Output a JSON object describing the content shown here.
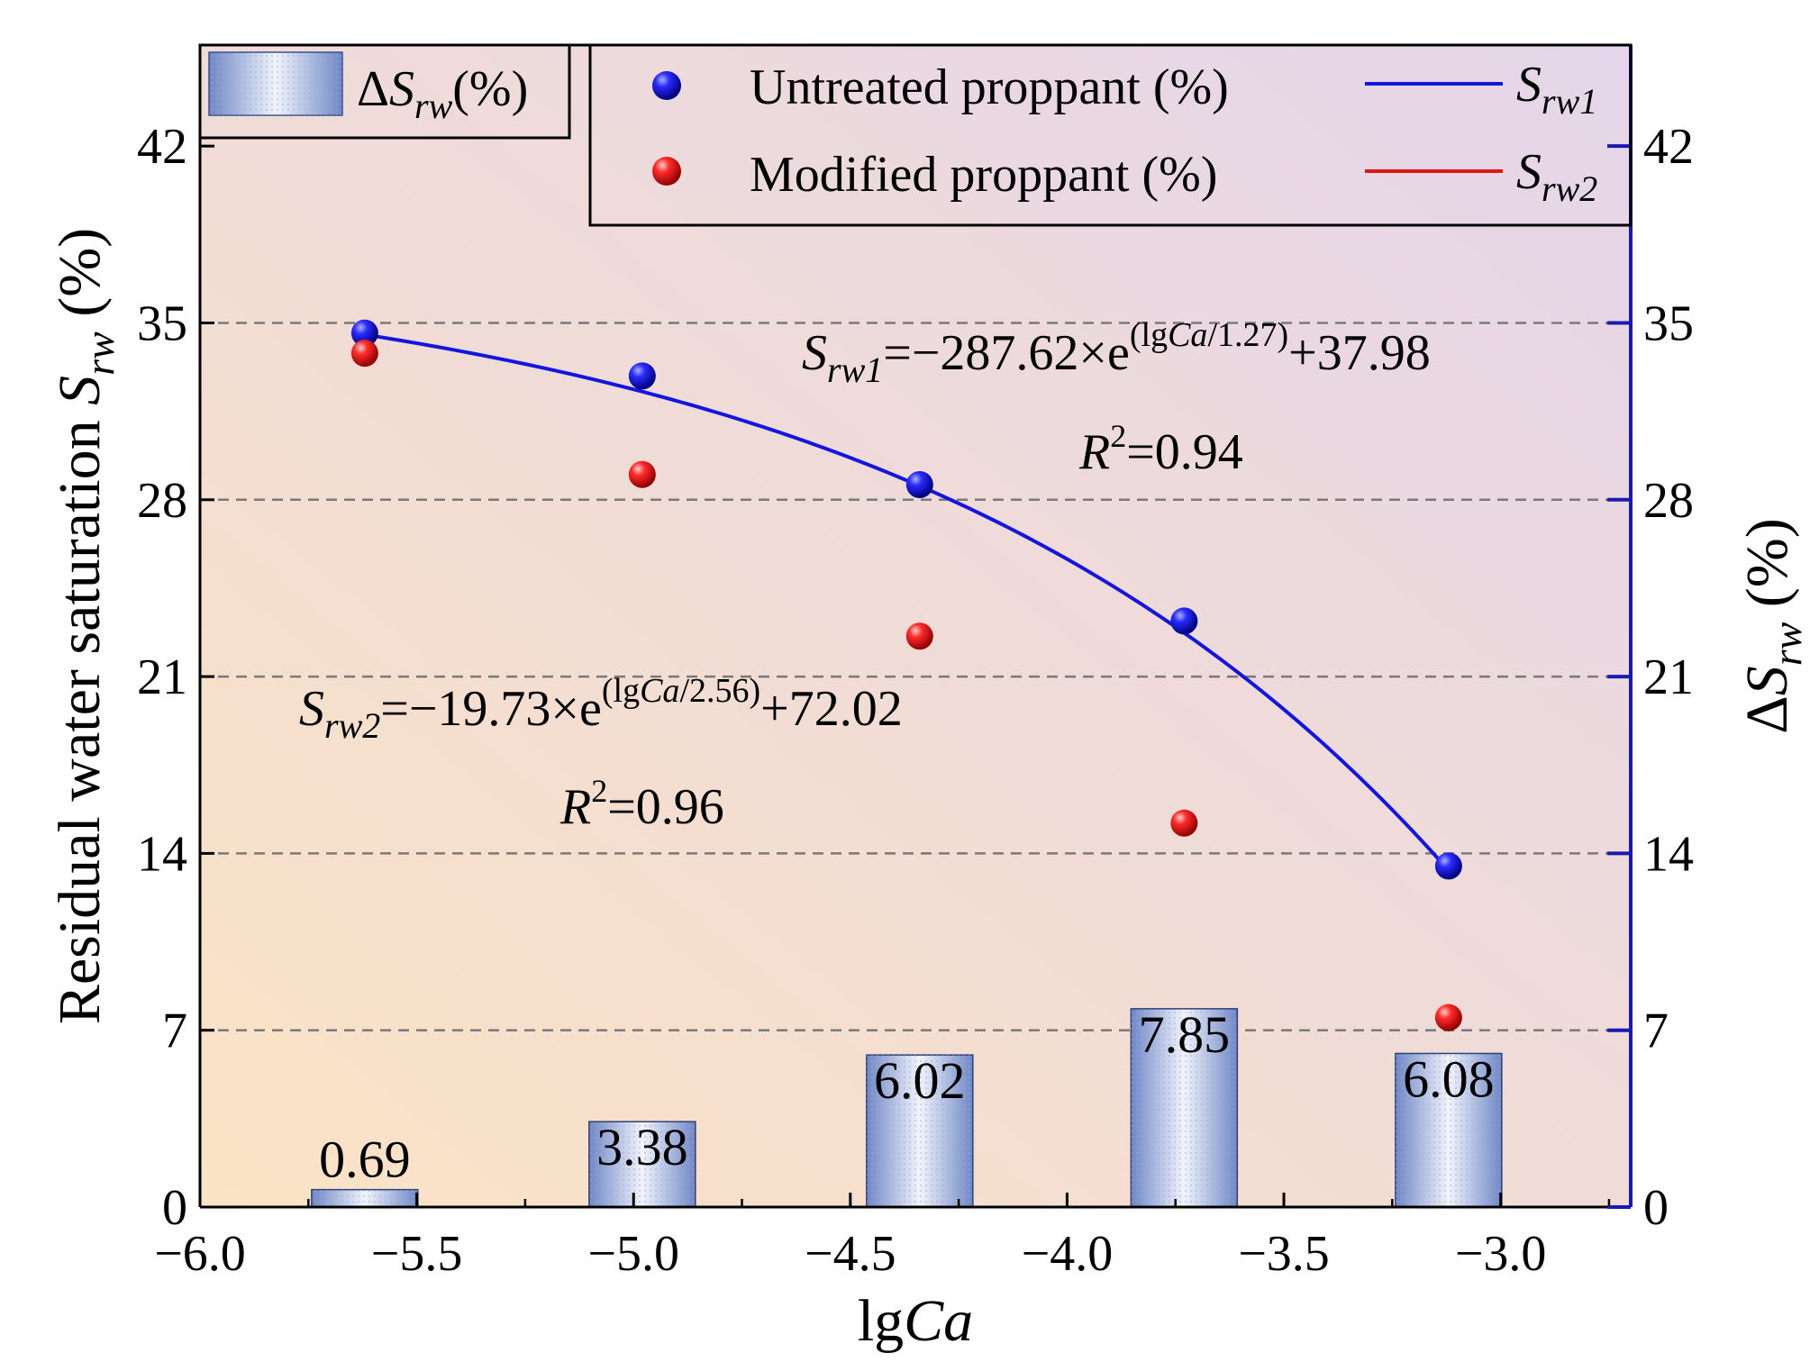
{
  "chart_data": {
    "type": "bar+scatter+line",
    "xlabel": "lgCa",
    "ylabel_left": "Residual water saturation S_rw (%)",
    "ylabel_right": "ΔS_rw (%)",
    "xlim": [
      -6.0,
      -2.7
    ],
    "ylim": [
      0,
      46
    ],
    "x_ticks": [
      -6.0,
      -5.5,
      -5.0,
      -4.5,
      -4.0,
      -3.5,
      -3.0
    ],
    "x_tick_labels": [
      "−6.0",
      "−5.5",
      "−5.0",
      "−4.5",
      "−4.0",
      "−3.5",
      "−3.0"
    ],
    "y_ticks": [
      0,
      7,
      14,
      21,
      28,
      35,
      42
    ],
    "y_tick_labels": [
      "0",
      "7",
      "14",
      "21",
      "28",
      "35",
      "42"
    ],
    "gridlines_y": [
      7,
      14,
      21,
      28,
      35
    ],
    "bars": {
      "name": "ΔS_rw(%)",
      "x": [
        -5.62,
        -4.98,
        -4.34,
        -3.73,
        -3.12
      ],
      "values": [
        0.69,
        3.38,
        6.02,
        7.85,
        6.08
      ],
      "labels": [
        "0.69",
        "3.38",
        "6.02",
        "7.85",
        "6.08"
      ]
    },
    "series": [
      {
        "name": "Untreated proppant (%)",
        "fit_name": "S_rw1",
        "color": "#1515e0",
        "x": [
          -5.62,
          -4.98,
          -4.34,
          -3.73,
          -3.12
        ],
        "values": [
          34.6,
          32.9,
          28.6,
          23.2,
          13.5
        ],
        "fit": {
          "a": -287.62,
          "b": 1.27,
          "c": 37.98
        }
      },
      {
        "name": "Modified proppant (%)",
        "fit_name": "S_rw2",
        "color": "#e01515",
        "x": [
          -5.62,
          -4.98,
          -4.34,
          -3.73,
          -3.12
        ],
        "values": [
          33.8,
          29.0,
          22.6,
          15.2,
          7.5
        ],
        "fit": {
          "a": -19.73,
          "b": 2.56,
          "c": 72.02
        }
      }
    ],
    "annotations": {
      "eq1": {
        "s": "S",
        "sub": "rw1",
        "mid": "=−287.62×e",
        "sup_a": "(lg",
        "sup_b": "Ca",
        "sup_c": "/1.27)",
        "tail": "+37.98"
      },
      "r1": {
        "r": "R",
        "sup": "2",
        "val": "=0.94"
      },
      "eq2": {
        "s": "S",
        "sub": "rw2",
        "mid": "=−19.73×e",
        "sup_a": "(lg",
        "sup_b": "Ca",
        "sup_c": "/2.56)",
        "tail": "+72.02"
      },
      "r2": {
        "r": "R",
        "sup": "2",
        "val": "=0.96"
      }
    },
    "legend": {
      "bar": {
        "delta": "Δ",
        "s": "S",
        "sub": "rw",
        "unit": "(%)"
      },
      "untreated": "Untreated proppant (%)",
      "modified": "Modified proppant (%)",
      "line1": {
        "s": "S",
        "sub": "rw1"
      },
      "line2": {
        "s": "S",
        "sub": "rw2"
      }
    },
    "axis_text": {
      "x_lg": "lg",
      "x_ca": "Ca",
      "yl_main": "Residual water saturation ",
      "yl_s": "S",
      "yl_sub": "rw",
      "yl_unit": " (%)",
      "yr_delta": "Δ",
      "yr_s": "S",
      "yr_sub": "rw",
      "yr_unit": " (%)"
    },
    "colors": {
      "untreated": "#1515e0",
      "modified": "#e01515",
      "right_axis": "#1a1ab0",
      "bg_bottom_left": "#fbe3c4",
      "bg_top_right": "#e6d6e8"
    }
  }
}
